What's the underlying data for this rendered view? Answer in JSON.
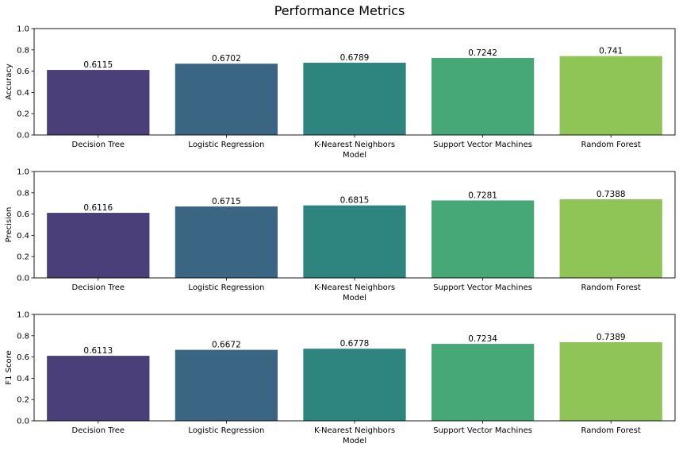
{
  "title": "Performance Metrics",
  "colors": [
    "#4a3f78",
    "#3b6683",
    "#2e8580",
    "#46a877",
    "#8fc457"
  ],
  "chart_data": [
    {
      "type": "bar",
      "categories": [
        "Decision Tree",
        "Logistic Regression",
        "K-Nearest Neighbors",
        "Support Vector Machines",
        "Random Forest"
      ],
      "values": [
        0.6115,
        0.6702,
        0.6789,
        0.7242,
        0.741
      ],
      "value_labels": [
        "0.6115",
        "0.6702",
        "0.6789",
        "0.7242",
        "0.741"
      ],
      "ylabel": "Accuracy",
      "xlabel": "Model",
      "ylim": [
        0,
        1.0
      ],
      "yticks": [
        "0.0",
        "0.2",
        "0.4",
        "0.6",
        "0.8",
        "1.0"
      ]
    },
    {
      "type": "bar",
      "categories": [
        "Decision Tree",
        "Logistic Regression",
        "K-Nearest Neighbors",
        "Support Vector Machines",
        "Random Forest"
      ],
      "values": [
        0.6116,
        0.6715,
        0.6815,
        0.7281,
        0.7388
      ],
      "value_labels": [
        "0.6116",
        "0.6715",
        "0.6815",
        "0.7281",
        "0.7388"
      ],
      "ylabel": "Precision",
      "xlabel": "Model",
      "ylim": [
        0,
        1.0
      ],
      "yticks": [
        "0.0",
        "0.2",
        "0.4",
        "0.6",
        "0.8",
        "1.0"
      ]
    },
    {
      "type": "bar",
      "categories": [
        "Decision Tree",
        "Logistic Regression",
        "K-Nearest Neighbors",
        "Support Vector Machines",
        "Random Forest"
      ],
      "values": [
        0.6113,
        0.6672,
        0.6778,
        0.7234,
        0.7389
      ],
      "value_labels": [
        "0.6113",
        "0.6672",
        "0.6778",
        "0.7234",
        "0.7389"
      ],
      "ylabel": "F1 Score",
      "xlabel": "Model",
      "ylim": [
        0,
        1.0
      ],
      "yticks": [
        "0.0",
        "0.2",
        "0.4",
        "0.6",
        "0.8",
        "1.0"
      ]
    }
  ]
}
